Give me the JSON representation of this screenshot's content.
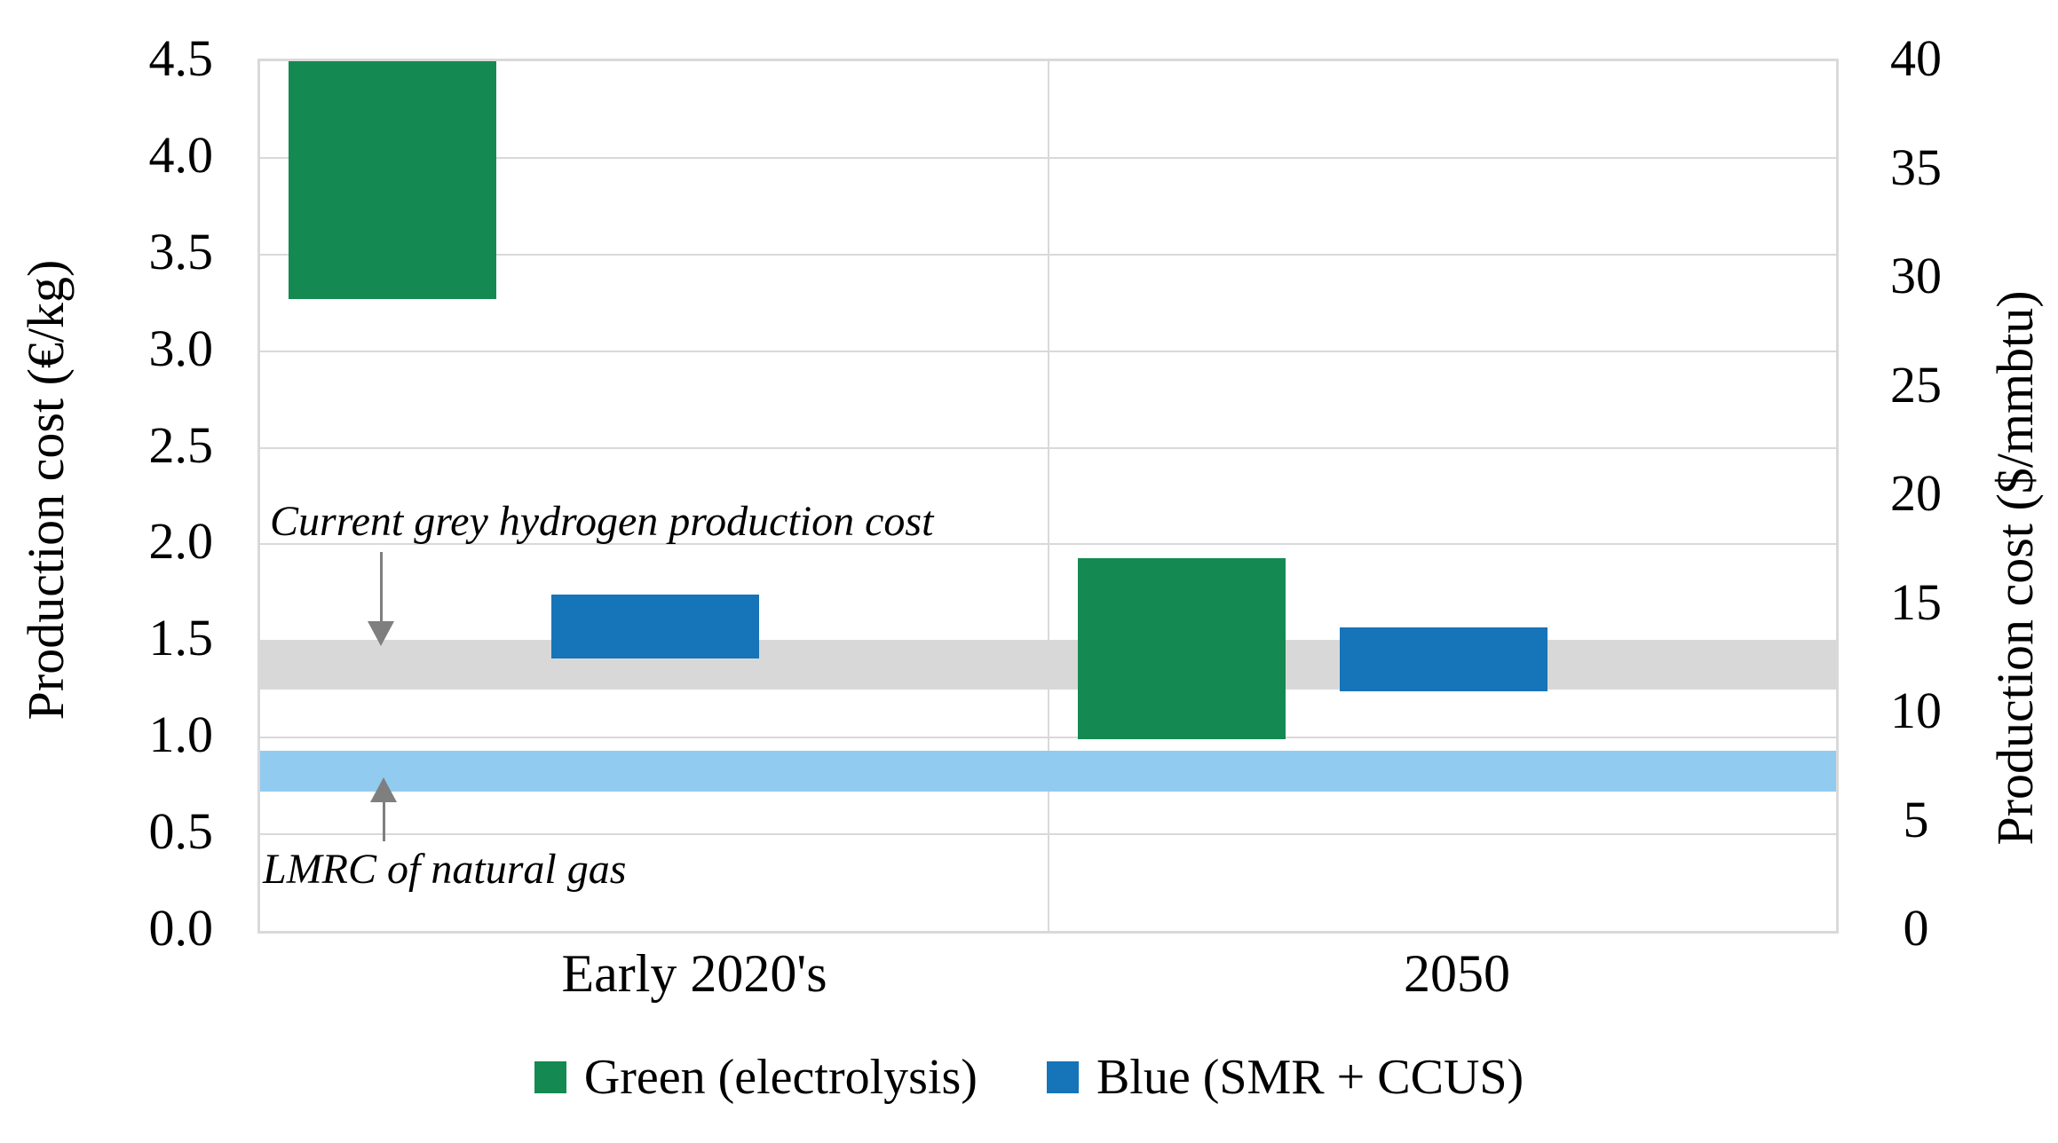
{
  "chart_data": {
    "type": "bar",
    "subtype": "floating-range-columns",
    "title": "",
    "categories": [
      "Early 2020's",
      "2050"
    ],
    "series": [
      {
        "name": "Green (electrolysis)",
        "color": "#148a52",
        "ranges_eur_per_kg": [
          [
            3.27,
            4.5
          ],
          [
            0.99,
            1.93
          ]
        ]
      },
      {
        "name": "Blue (SMR + CCUS)",
        "color": "#1674b9",
        "ranges_eur_per_kg": [
          [
            1.41,
            1.74
          ],
          [
            1.24,
            1.57
          ]
        ]
      }
    ],
    "bands": [
      {
        "name": "Current grey hydrogen production cost",
        "color": "#d8d8d8",
        "range_eur_per_kg": [
          1.25,
          1.5
        ]
      },
      {
        "name": "LMRC of natural gas",
        "color": "#92cbf0",
        "range_eur_per_kg": [
          0.72,
          0.93
        ]
      }
    ],
    "left_axis": {
      "label": "Production cost (€/kg)",
      "min": 0.0,
      "max": 4.5,
      "step": 0.5,
      "ticks": [
        "0.0",
        "0.5",
        "1.0",
        "1.5",
        "2.0",
        "2.5",
        "3.0",
        "3.5",
        "4.0",
        "4.5"
      ]
    },
    "right_axis": {
      "label": "Production cost ($/mmbtu)",
      "min": 0,
      "max": 40,
      "step": 5,
      "ticks": [
        "0",
        "5",
        "10",
        "15",
        "20",
        "25",
        "30",
        "35",
        "40"
      ]
    },
    "annotations": [
      {
        "text": "Current grey hydrogen production cost",
        "arrow": "down",
        "points_to": "grey band"
      },
      {
        "text": "LMRC of natural gas",
        "arrow": "up",
        "points_to": "light blue band"
      }
    ],
    "grid": true,
    "legend_position": "bottom"
  },
  "colors": {
    "gridline": "#d9d9d9",
    "arrow": "#7f7f7f",
    "background": "#ffffff",
    "green_series": "#148a52",
    "blue_series": "#1674b9",
    "grey_band": "#d8d8d8",
    "lightblue_band": "#92cbf0"
  }
}
